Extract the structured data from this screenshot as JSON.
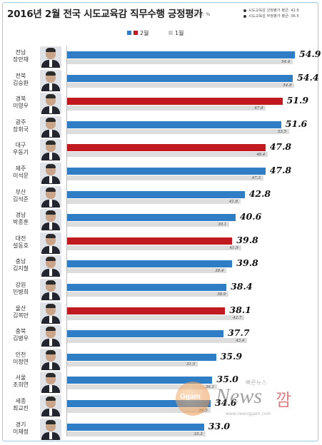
{
  "colors": {
    "current": "#2f7dc4",
    "highlight": "#c0191f",
    "previous": "#dddddd"
  },
  "header": {
    "title": "2016년 2월 전국 시도교육감 직무수행 긍정평가",
    "unit": "단위: %",
    "averages": [
      {
        "text": "시도교육감 긍정평가 평균: 42.6"
      },
      {
        "text": "시도교육감 부정평가 평균: 36.5"
      }
    ]
  },
  "legend": {
    "current": "2월",
    "previous": "1월"
  },
  "watermark": {
    "logo": "Ggam",
    "brand_ko": "빠른뉴스",
    "brand_news": "News",
    "brand_mark": "깜",
    "url": "www.newsggam.com"
  },
  "chart_data": {
    "type": "bar",
    "orientation": "horizontal",
    "title": "2016년 2월 전국 시도교육감 직무수행 긍정평가",
    "unit": "%",
    "series": [
      {
        "name": "2월",
        "values": [
          54.9,
          54.4,
          51.9,
          51.6,
          47.8,
          47.8,
          42.8,
          40.6,
          39.8,
          39.8,
          38.4,
          38.1,
          37.7,
          35.9,
          35.0,
          34.6,
          33.0
        ]
      },
      {
        "name": "1월",
        "values": [
          54.4,
          54.8,
          47.9,
          53.5,
          48.4,
          47.3,
          41.8,
          39.1,
          41.9,
          38.4,
          38.9,
          42.7,
          43.4,
          31.5,
          36.1,
          34.5,
          33.3
        ]
      }
    ],
    "categories": [
      {
        "region": "전남",
        "name": "장만채",
        "highlight": false
      },
      {
        "region": "전북",
        "name": "김승환",
        "highlight": false
      },
      {
        "region": "경북",
        "name": "이영우",
        "highlight": true
      },
      {
        "region": "광주",
        "name": "장휘국",
        "highlight": false
      },
      {
        "region": "대구",
        "name": "우동기",
        "highlight": true
      },
      {
        "region": "제주",
        "name": "이석문",
        "highlight": false
      },
      {
        "region": "부산",
        "name": "김석준",
        "highlight": false
      },
      {
        "region": "경남",
        "name": "박종훈",
        "highlight": false
      },
      {
        "region": "대전",
        "name": "설동호",
        "highlight": true
      },
      {
        "region": "충남",
        "name": "김지철",
        "highlight": false
      },
      {
        "region": "강원",
        "name": "민병희",
        "highlight": false
      },
      {
        "region": "울산",
        "name": "김복만",
        "highlight": true
      },
      {
        "region": "충북",
        "name": "김병우",
        "highlight": false
      },
      {
        "region": "인천",
        "name": "이청연",
        "highlight": false
      },
      {
        "region": "서울",
        "name": "조희연",
        "highlight": false
      },
      {
        "region": "세종",
        "name": "최교진",
        "highlight": false
      },
      {
        "region": "경기",
        "name": "이재정",
        "highlight": false
      }
    ],
    "legend_position": "top",
    "grid": false
  }
}
